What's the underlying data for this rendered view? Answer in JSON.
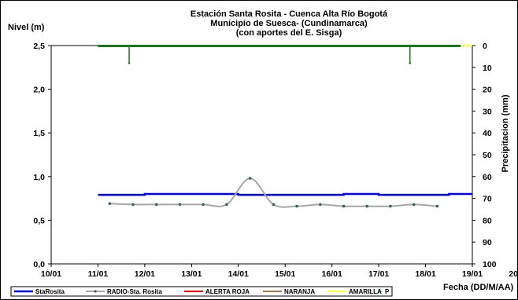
{
  "chart_data": {
    "type": "line",
    "title_lines": [
      "Estación Santa Rosita - Cuenca Alta Río Bogotá",
      "Municipio de Suesca- (Cundinamarca)",
      "(con aportes del  E. Sisga)"
    ],
    "ylabel": "Nivel (m)",
    "y2label": "Precipitacion (mm)",
    "xlabel": "Fecha (DD/M/AA)",
    "ylim": [
      0,
      2.5
    ],
    "y2lim": [
      0,
      100
    ],
    "y2_inverted": true,
    "xlim": [
      0,
      9
    ],
    "x_ticks": [
      "10/01",
      "11/01",
      "12/01",
      "13/01",
      "14/01",
      "15/01",
      "16/01",
      "17/01",
      "18/01",
      "19/01",
      "20/01"
    ],
    "y_ticks": [
      "0,0",
      "0,5",
      "1,0",
      "1,5",
      "2,0",
      "2,5"
    ],
    "y2_ticks": [
      "0",
      "10",
      "20",
      "30",
      "40",
      "50",
      "60",
      "70",
      "80",
      "90",
      "100"
    ],
    "grid": false,
    "legend_position": "bottom",
    "series": [
      {
        "name": "StaRosita",
        "color": "#0000ff",
        "axis": "left",
        "x": [
          "11/01",
          "11/01 12:00",
          "12/01",
          "13/01",
          "13/01 18:00",
          "14/01",
          "14/01 12:00",
          "15/01",
          "16/01",
          "16/01 06:00",
          "17/01",
          "18/01",
          "18/01 12:00",
          "19/01"
        ],
        "y": [
          0.79,
          0.79,
          0.8,
          0.8,
          0.8,
          0.79,
          0.79,
          0.79,
          0.79,
          0.8,
          0.79,
          0.79,
          0.8,
          0.8
        ]
      },
      {
        "name": "RADIO-Sta. Rosita",
        "color": "#a6a6a6",
        "marker_color": "#2e6b4a",
        "axis": "left",
        "x": [
          "11/01 06:00",
          "11/01 18:00",
          "12/01 06:00",
          "12/01 18:00",
          "13/01 06:00",
          "13/01 18:00",
          "14/01 06:00",
          "14/01 18:00",
          "15/01 06:00",
          "15/01 18:00",
          "16/01 06:00",
          "16/01 18:00",
          "17/01 06:00",
          "17/01 18:00",
          "18/01 06:00"
        ],
        "y": [
          0.69,
          0.68,
          0.68,
          0.68,
          0.68,
          0.68,
          0.98,
          0.68,
          0.66,
          0.68,
          0.66,
          0.66,
          0.66,
          0.68,
          0.66
        ]
      },
      {
        "name": "ALERTA ROJA",
        "color": "#ff0000",
        "axis": "left",
        "x": [],
        "y": []
      },
      {
        "name": "NARANJA",
        "color": "#a0784b",
        "axis": "left",
        "x": [],
        "y": []
      },
      {
        "name": "AMARILLA",
        "color": "#ffff33",
        "axis": "left",
        "x": [
          "18/01 18:00",
          "19/01"
        ],
        "y": [
          2.5,
          2.5
        ]
      },
      {
        "name": "P",
        "color": "#1a7a1a",
        "axis": "right",
        "x": [
          "11/01",
          "11/01 12:00",
          "12/01",
          "13/01",
          "14/01",
          "15/01",
          "16/01",
          "17/01",
          "17/01 12:00",
          "18/01",
          "18/01 18:00"
        ],
        "y": [
          0,
          0,
          0,
          0,
          0,
          0,
          0,
          0,
          0,
          0,
          0
        ],
        "spikes": [
          {
            "x": "11/01 16:00",
            "y": 8
          },
          {
            "x": "17/01 16:00",
            "y": 8
          }
        ]
      }
    ]
  }
}
